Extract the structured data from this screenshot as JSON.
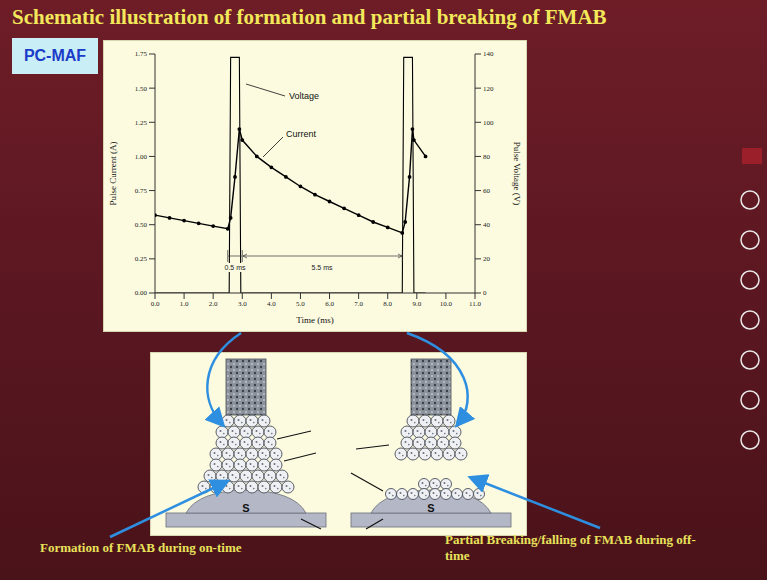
{
  "title": "Schematic illustration of formation and partial breaking of FMAB",
  "badge": "PC-MAF",
  "chart_data": {
    "type": "line",
    "x_label": "Time (ms)",
    "y_label": "Pulse Current (A)",
    "y2_label": "Pulse Voltage (V)",
    "xlim": [
      0,
      11
    ],
    "xticks": [
      {
        "value": 0,
        "label": "0.0"
      },
      {
        "value": 1,
        "label": "1.0"
      },
      {
        "value": 2,
        "label": "2.0"
      },
      {
        "value": 3,
        "label": "3.0"
      },
      {
        "value": 4,
        "label": "4.0"
      },
      {
        "value": 5,
        "label": "5.0"
      },
      {
        "value": 6,
        "label": "6.0"
      },
      {
        "value": 7,
        "label": "7.0"
      },
      {
        "value": 8,
        "label": "8.0"
      },
      {
        "value": 9,
        "label": "9.0"
      },
      {
        "value": 10,
        "label": "10.0"
      },
      {
        "value": 11,
        "label": "11.0"
      }
    ],
    "ylim": [
      0,
      1.75
    ],
    "yticks": [
      {
        "value": 0,
        "label": "0.00"
      },
      {
        "value": 0.25,
        "label": "0.25"
      },
      {
        "value": 0.5,
        "label": "0.50"
      },
      {
        "value": 0.75,
        "label": "0.75"
      },
      {
        "value": 1,
        "label": "1.00"
      },
      {
        "value": 1.25,
        "label": "1.25"
      },
      {
        "value": 1.5,
        "label": "1.50"
      },
      {
        "value": 1.75,
        "label": "1.75"
      }
    ],
    "y2lim": [
      0,
      140
    ],
    "y2ticks": [
      0,
      20,
      40,
      60,
      80,
      100,
      120,
      140
    ],
    "series": [
      {
        "name": "Voltage",
        "color": "#000000",
        "axis": "y2",
        "x": [
          0,
          2.55,
          2.6,
          2.9,
          2.95,
          8.5,
          8.55,
          8.85,
          8.9,
          9.3
        ],
        "values": [
          0,
          0,
          138,
          138,
          0,
          0,
          138,
          138,
          0,
          0
        ]
      },
      {
        "name": "Current",
        "color": "#000000",
        "marker": "circle",
        "x": [
          0,
          0.5,
          1,
          1.5,
          2,
          2.5,
          2.6,
          2.75,
          2.9,
          3,
          3.5,
          4,
          4.5,
          5,
          5.5,
          6,
          6.5,
          7,
          7.5,
          8,
          8.5,
          8.6,
          8.75,
          8.85,
          8.9,
          9.3
        ],
        "values": [
          0.57,
          0.55,
          0.53,
          0.51,
          0.49,
          0.47,
          0.55,
          0.85,
          1.2,
          1.12,
          1.0,
          0.92,
          0.85,
          0.78,
          0.72,
          0.67,
          0.62,
          0.57,
          0.52,
          0.48,
          0.44,
          0.52,
          0.85,
          1.2,
          1.12,
          1.0
        ]
      }
    ],
    "annotations": [
      "0.5 ms",
      "5.5 ms"
    ]
  },
  "diagram": {
    "panels": [
      {
        "substrate": "S",
        "caption": "Formation of FMAB during on-time"
      },
      {
        "substrate": "S",
        "caption": "Partial Breaking/falling of FMAB during off-time"
      }
    ]
  }
}
